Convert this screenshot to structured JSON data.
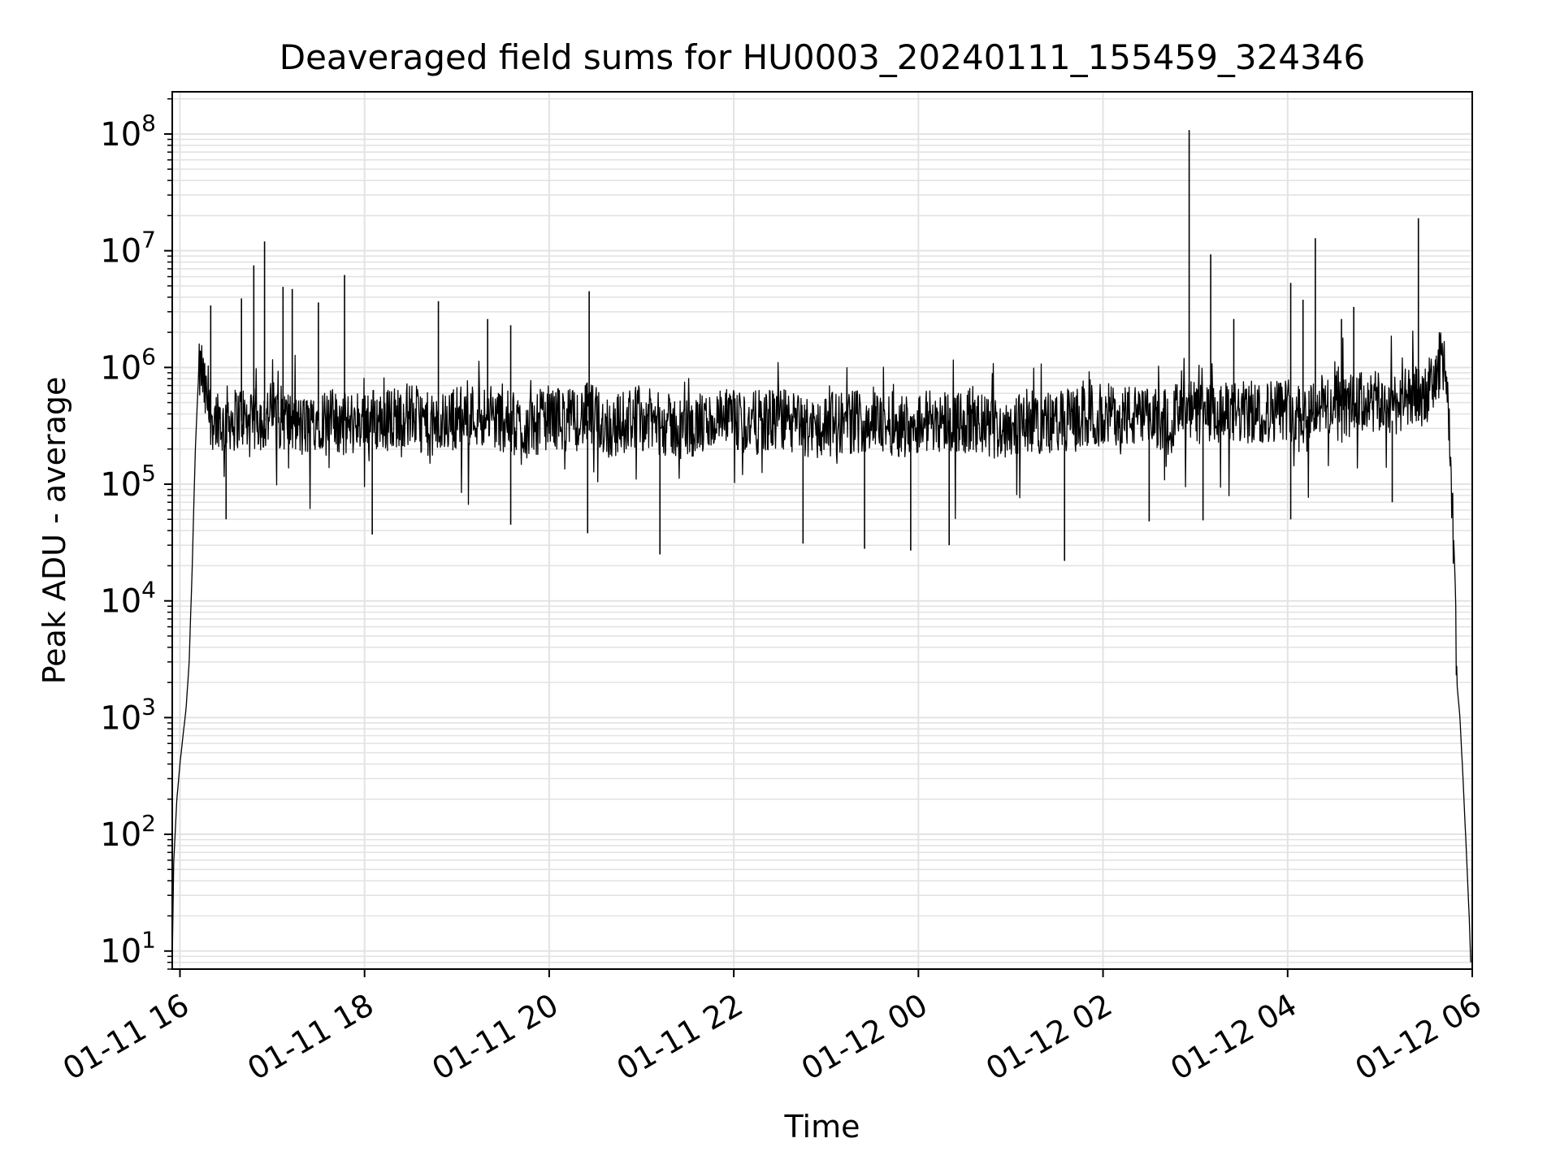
{
  "chart_data": {
    "type": "line",
    "title": "Deaveraged field sums for HU0003_20240111_155459_324346",
    "xlabel": "Time",
    "ylabel": "Peak ADU - average",
    "yscale": "log",
    "grid": true,
    "legend": "none",
    "xlim": [
      "2024-01-11 15:55",
      "2024-01-12 06:00"
    ],
    "ylim": [
      7,
      230000000
    ],
    "x_ticks": [
      {
        "t": "2024-01-11 16:00",
        "label": "01-11 16"
      },
      {
        "t": "2024-01-11 18:00",
        "label": "01-11 18"
      },
      {
        "t": "2024-01-11 20:00",
        "label": "01-11 20"
      },
      {
        "t": "2024-01-11 22:00",
        "label": "01-11 22"
      },
      {
        "t": "2024-01-12 00:00",
        "label": "01-12 00"
      },
      {
        "t": "2024-01-12 02:00",
        "label": "01-12 02"
      },
      {
        "t": "2024-01-12 04:00",
        "label": "01-12 04"
      },
      {
        "t": "2024-01-12 06:00",
        "label": "01-12 06"
      }
    ],
    "y_ticks": [
      {
        "value": 10,
        "base": "10",
        "exp": "1"
      },
      {
        "value": 100,
        "base": "10",
        "exp": "2"
      },
      {
        "value": 1000,
        "base": "10",
        "exp": "3"
      },
      {
        "value": 10000,
        "base": "10",
        "exp": "4"
      },
      {
        "value": 100000,
        "base": "10",
        "exp": "5"
      },
      {
        "value": 1000000,
        "base": "10",
        "exp": "6"
      },
      {
        "value": 10000000,
        "base": "10",
        "exp": "7"
      },
      {
        "value": 100000000,
        "base": "10",
        "exp": "8"
      }
    ],
    "series": [
      {
        "color": "#000000",
        "baseline": 350000,
        "x": [
          "2024-01-11 15:55",
          "2024-01-11 15:56",
          "2024-01-11 15:58",
          "2024-01-11 16:00",
          "2024-01-11 16:02",
          "2024-01-11 16:04",
          "2024-01-11 16:06",
          "2024-01-11 16:08",
          "2024-01-11 16:10",
          "2024-01-11 16:12",
          "2024-01-11 16:14",
          "2024-01-11 16:16",
          "2024-01-11 16:18",
          "2024-01-11 16:20",
          "2024-01-11 16:22",
          "2024-01-11 16:25",
          "2024-01-11 16:28",
          "2024-01-11 16:30",
          "2024-01-11 16:35",
          "2024-01-11 16:40",
          "2024-01-11 16:45",
          "2024-01-11 16:50",
          "2024-01-11 16:55",
          "2024-01-11 17:00",
          "2024-01-11 17:10",
          "2024-01-11 17:20",
          "2024-01-11 17:30",
          "2024-01-11 17:40",
          "2024-01-11 17:50",
          "2024-01-11 18:00",
          "2024-01-11 18:10",
          "2024-01-11 18:30",
          "2024-01-11 18:45",
          "2024-01-11 19:00",
          "2024-01-11 19:15",
          "2024-01-11 19:30",
          "2024-01-11 19:45",
          "2024-01-11 20:00",
          "2024-01-11 20:15",
          "2024-01-11 20:26",
          "2024-01-11 20:40",
          "2024-01-11 20:55",
          "2024-01-11 21:15",
          "2024-01-11 21:30",
          "2024-01-11 21:50",
          "2024-01-11 22:10",
          "2024-01-11 22:30",
          "2024-01-11 22:50",
          "2024-01-11 23:10",
          "2024-01-11 23:30",
          "2024-01-11 23:50",
          "2024-01-12 00:10",
          "2024-01-12 00:30",
          "2024-01-12 00:50",
          "2024-01-12 01:10",
          "2024-01-12 01:30",
          "2024-01-12 01:50",
          "2024-01-12 02:10",
          "2024-01-12 02:30",
          "2024-01-12 02:50",
          "2024-01-12 02:58",
          "2024-01-12 03:10",
          "2024-01-12 03:25",
          "2024-01-12 03:45",
          "2024-01-12 04:00",
          "2024-01-12 04:10",
          "2024-01-12 04:20",
          "2024-01-12 04:35",
          "2024-01-12 04:50",
          "2024-01-12 05:05",
          "2024-01-12 05:15",
          "2024-01-12 05:25",
          "2024-01-12 05:35",
          "2024-01-12 05:38",
          "2024-01-12 05:40",
          "2024-01-12 05:42",
          "2024-01-12 05:44",
          "2024-01-12 05:46",
          "2024-01-12 05:48",
          "2024-01-12 05:50",
          "2024-01-12 05:52",
          "2024-01-12 05:54",
          "2024-01-12 05:56",
          "2024-01-12 05:58",
          "2024-01-12 05:59"
        ],
        "y": [
          8,
          60,
          200,
          400,
          700,
          1200,
          3000,
          20000,
          200000,
          800000,
          1000000,
          600000,
          500000,
          400000,
          350000,
          400000,
          300000,
          380000,
          350000,
          400000,
          300000,
          380000,
          350000,
          420000,
          350000,
          300000,
          380000,
          350000,
          320000,
          380000,
          350000,
          400000,
          300000,
          380000,
          400000,
          350000,
          300000,
          380000,
          350000,
          400000,
          300000,
          380000,
          320000,
          300000,
          350000,
          330000,
          360000,
          300000,
          340000,
          350000,
          320000,
          360000,
          340000,
          300000,
          350000,
          330000,
          380000,
          400000,
          350000,
          400000,
          420000,
          380000,
          400000,
          420000,
          450000,
          400000,
          480000,
          450000,
          500000,
          480000,
          520000,
          550000,
          700000,
          1000000,
          1300000,
          1100000,
          600000,
          100000,
          30000,
          2000,
          1000,
          300,
          80,
          20,
          8
        ],
        "spikes": [
          {
            "x": "2024-01-11 16:20",
            "y": 3400000
          },
          {
            "x": "2024-01-11 16:40",
            "y": 3900000
          },
          {
            "x": "2024-01-11 16:48",
            "y": 7500000
          },
          {
            "x": "2024-01-11 16:55",
            "y": 12000000
          },
          {
            "x": "2024-01-11 17:07",
            "y": 4900000
          },
          {
            "x": "2024-01-11 17:13",
            "y": 4700000
          },
          {
            "x": "2024-01-11 17:30",
            "y": 3600000
          },
          {
            "x": "2024-01-11 17:47",
            "y": 6200000
          },
          {
            "x": "2024-01-11 18:48",
            "y": 3700000
          },
          {
            "x": "2024-01-11 19:20",
            "y": 2600000
          },
          {
            "x": "2024-01-11 19:35",
            "y": 2300000
          },
          {
            "x": "2024-01-11 20:26",
            "y": 4500000
          },
          {
            "x": "2024-01-12 02:56",
            "y": 108000000
          },
          {
            "x": "2024-01-12 03:10",
            "y": 9300000
          },
          {
            "x": "2024-01-12 03:25",
            "y": 2600000
          },
          {
            "x": "2024-01-12 04:02",
            "y": 5300000
          },
          {
            "x": "2024-01-12 04:10",
            "y": 3800000
          },
          {
            "x": "2024-01-12 04:18",
            "y": 12800000
          },
          {
            "x": "2024-01-12 04:35",
            "y": 2600000
          },
          {
            "x": "2024-01-12 04:43",
            "y": 3300000
          },
          {
            "x": "2024-01-12 05:25",
            "y": 19000000
          }
        ],
        "dips": [
          {
            "x": "2024-01-11 16:30",
            "y": 50000
          },
          {
            "x": "2024-01-11 18:05",
            "y": 37000
          },
          {
            "x": "2024-01-11 19:35",
            "y": 45000
          },
          {
            "x": "2024-01-11 20:25",
            "y": 38000
          },
          {
            "x": "2024-01-11 21:12",
            "y": 25000
          },
          {
            "x": "2024-01-11 22:45",
            "y": 31000
          },
          {
            "x": "2024-01-11 23:25",
            "y": 28000
          },
          {
            "x": "2024-01-11 23:55",
            "y": 27000
          },
          {
            "x": "2024-01-12 00:20",
            "y": 30000
          },
          {
            "x": "2024-01-12 01:35",
            "y": 22000
          },
          {
            "x": "2024-01-12 02:30",
            "y": 48000
          },
          {
            "x": "2024-01-12 03:05",
            "y": 49000
          },
          {
            "x": "2024-01-12 04:02",
            "y": 50000
          },
          {
            "x": "2024-01-12 05:08",
            "y": 70000
          }
        ]
      }
    ]
  }
}
